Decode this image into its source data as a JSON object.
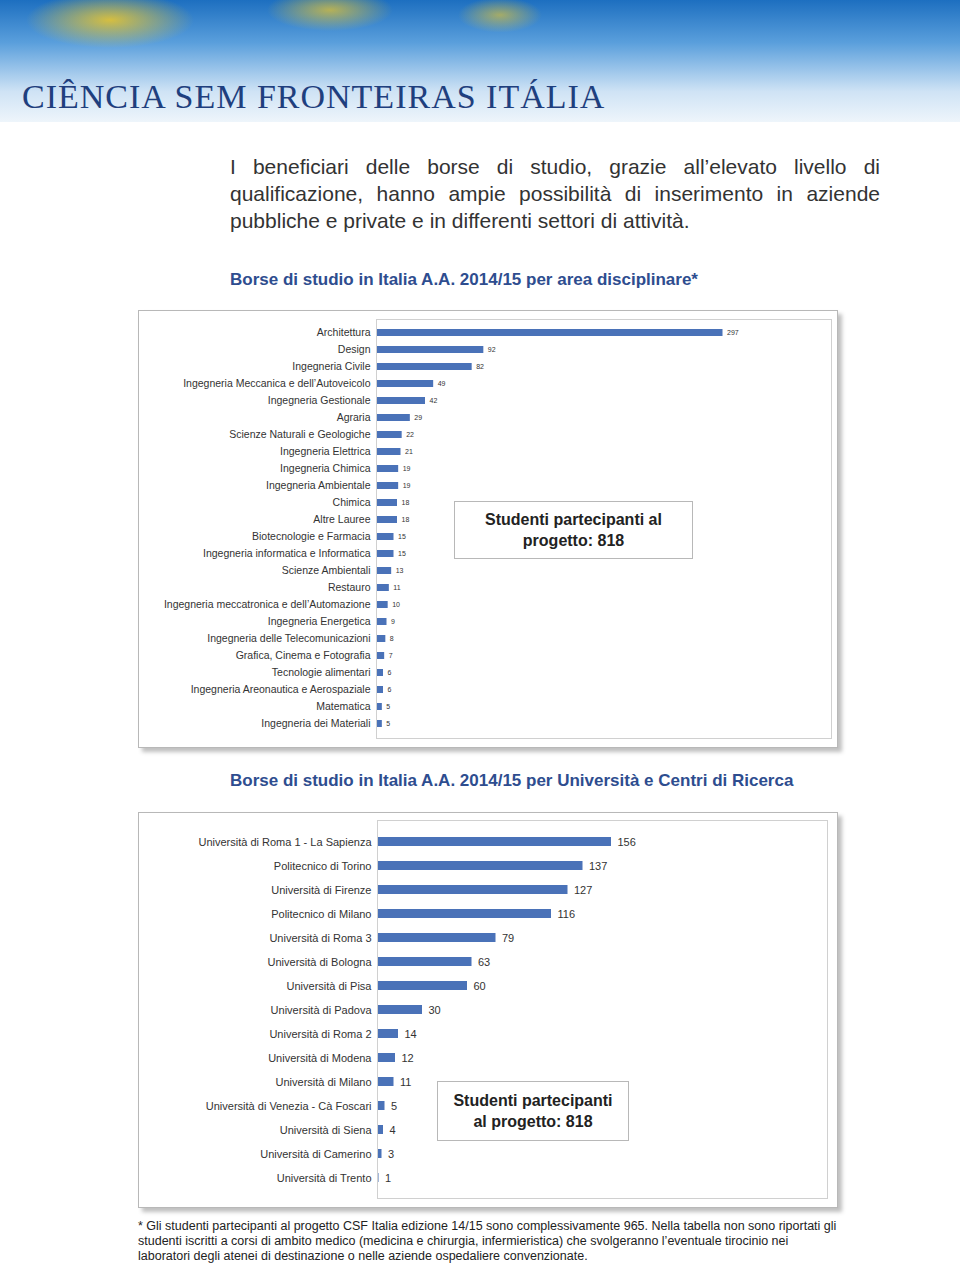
{
  "header": {
    "title": "CIÊNCIA SEM FRONTEIRAS ITÁLIA"
  },
  "intro": "I beneficiari delle borse di studio, grazie all’elevato livello di qualificazione, hanno ampie possibilità di inserimento in aziende pubbliche e private e in differenti settori di attività.",
  "chart_data": [
    {
      "type": "bar",
      "title": "Borse di studio in Italia A.A. 2014/15 per area disciplinare*",
      "orientation": "horizontal",
      "categories": [
        "Architettura",
        "Design",
        "Ingegneria Civile",
        "Ingegneria Meccanica e dell’Autoveicolo",
        "Ingegneria Gestionale",
        "Agraria",
        "Scienze Naturali e Geologiche",
        "Ingegneria Elettrica",
        "Ingegneria Chimica",
        "Ingegneria Ambientale",
        "Chimica",
        "Altre Lauree",
        "Biotecnologie e Farmacia",
        "Ingegneria informatica e Informatica",
        "Scienze Ambientali",
        "Restauro",
        "Ingegneria meccatronica e dell’Automazione",
        "Ingegneria Energetica",
        "Ingegneria delle Telecomunicazioni",
        "Grafica, Cinema e Fotografia",
        "Tecnologie alimentari",
        "Ingegneria Areonautica e Aerospaziale",
        "Matematica",
        "Ingegneria dei Materiali"
      ],
      "values": [
        297,
        92,
        82,
        49,
        42,
        29,
        22,
        21,
        19,
        19,
        18,
        18,
        15,
        15,
        13,
        11,
        10,
        9,
        8,
        7,
        6,
        6,
        5,
        5
      ],
      "color": "#4a72b8",
      "xlim": [
        0,
        390
      ],
      "data_labels": true,
      "tick_labels": "y",
      "annotations": [
        "Studenti partecipanti al progetto: 818"
      ]
    },
    {
      "type": "bar",
      "title": "Borse di studio in Italia A.A. 2014/15 per Università e Centri di Ricerca",
      "orientation": "horizontal",
      "categories": [
        "Università di Roma 1 - La Sapienza",
        "Politecnico di Torino",
        "Università di Firenze",
        "Politecnico di Milano",
        "Università di Roma 3",
        "Università di Bologna",
        "Università di Pisa",
        "Università di Padova",
        "Università di Roma 2",
        "Università di Modena",
        "Università di Milano",
        "Università di Venezia - Cà Foscari",
        "Università di Siena",
        "Università di Camerino",
        "Università di Trento"
      ],
      "values": [
        156,
        137,
        127,
        116,
        79,
        63,
        60,
        30,
        14,
        12,
        11,
        5,
        4,
        3,
        1
      ],
      "color": "#4a72b8",
      "xlim": [
        0,
        300
      ],
      "data_labels": true,
      "tick_labels": "y",
      "annotations": [
        "Studenti partecipanti al progetto: 818"
      ]
    }
  ],
  "footnote": "* Gli studenti partecipanti al progetto CSF Italia edizione 14/15 sono complessivamente 965. Nella tabella non sono riportati gli studenti iscritti a corsi di ambito medico (medicina e chirurgia, infermieristica) che svolgeranno l’eventuale tirocinio nei laboratori degli atenei di destinazione o nelle aziende ospedaliere convenzionate."
}
